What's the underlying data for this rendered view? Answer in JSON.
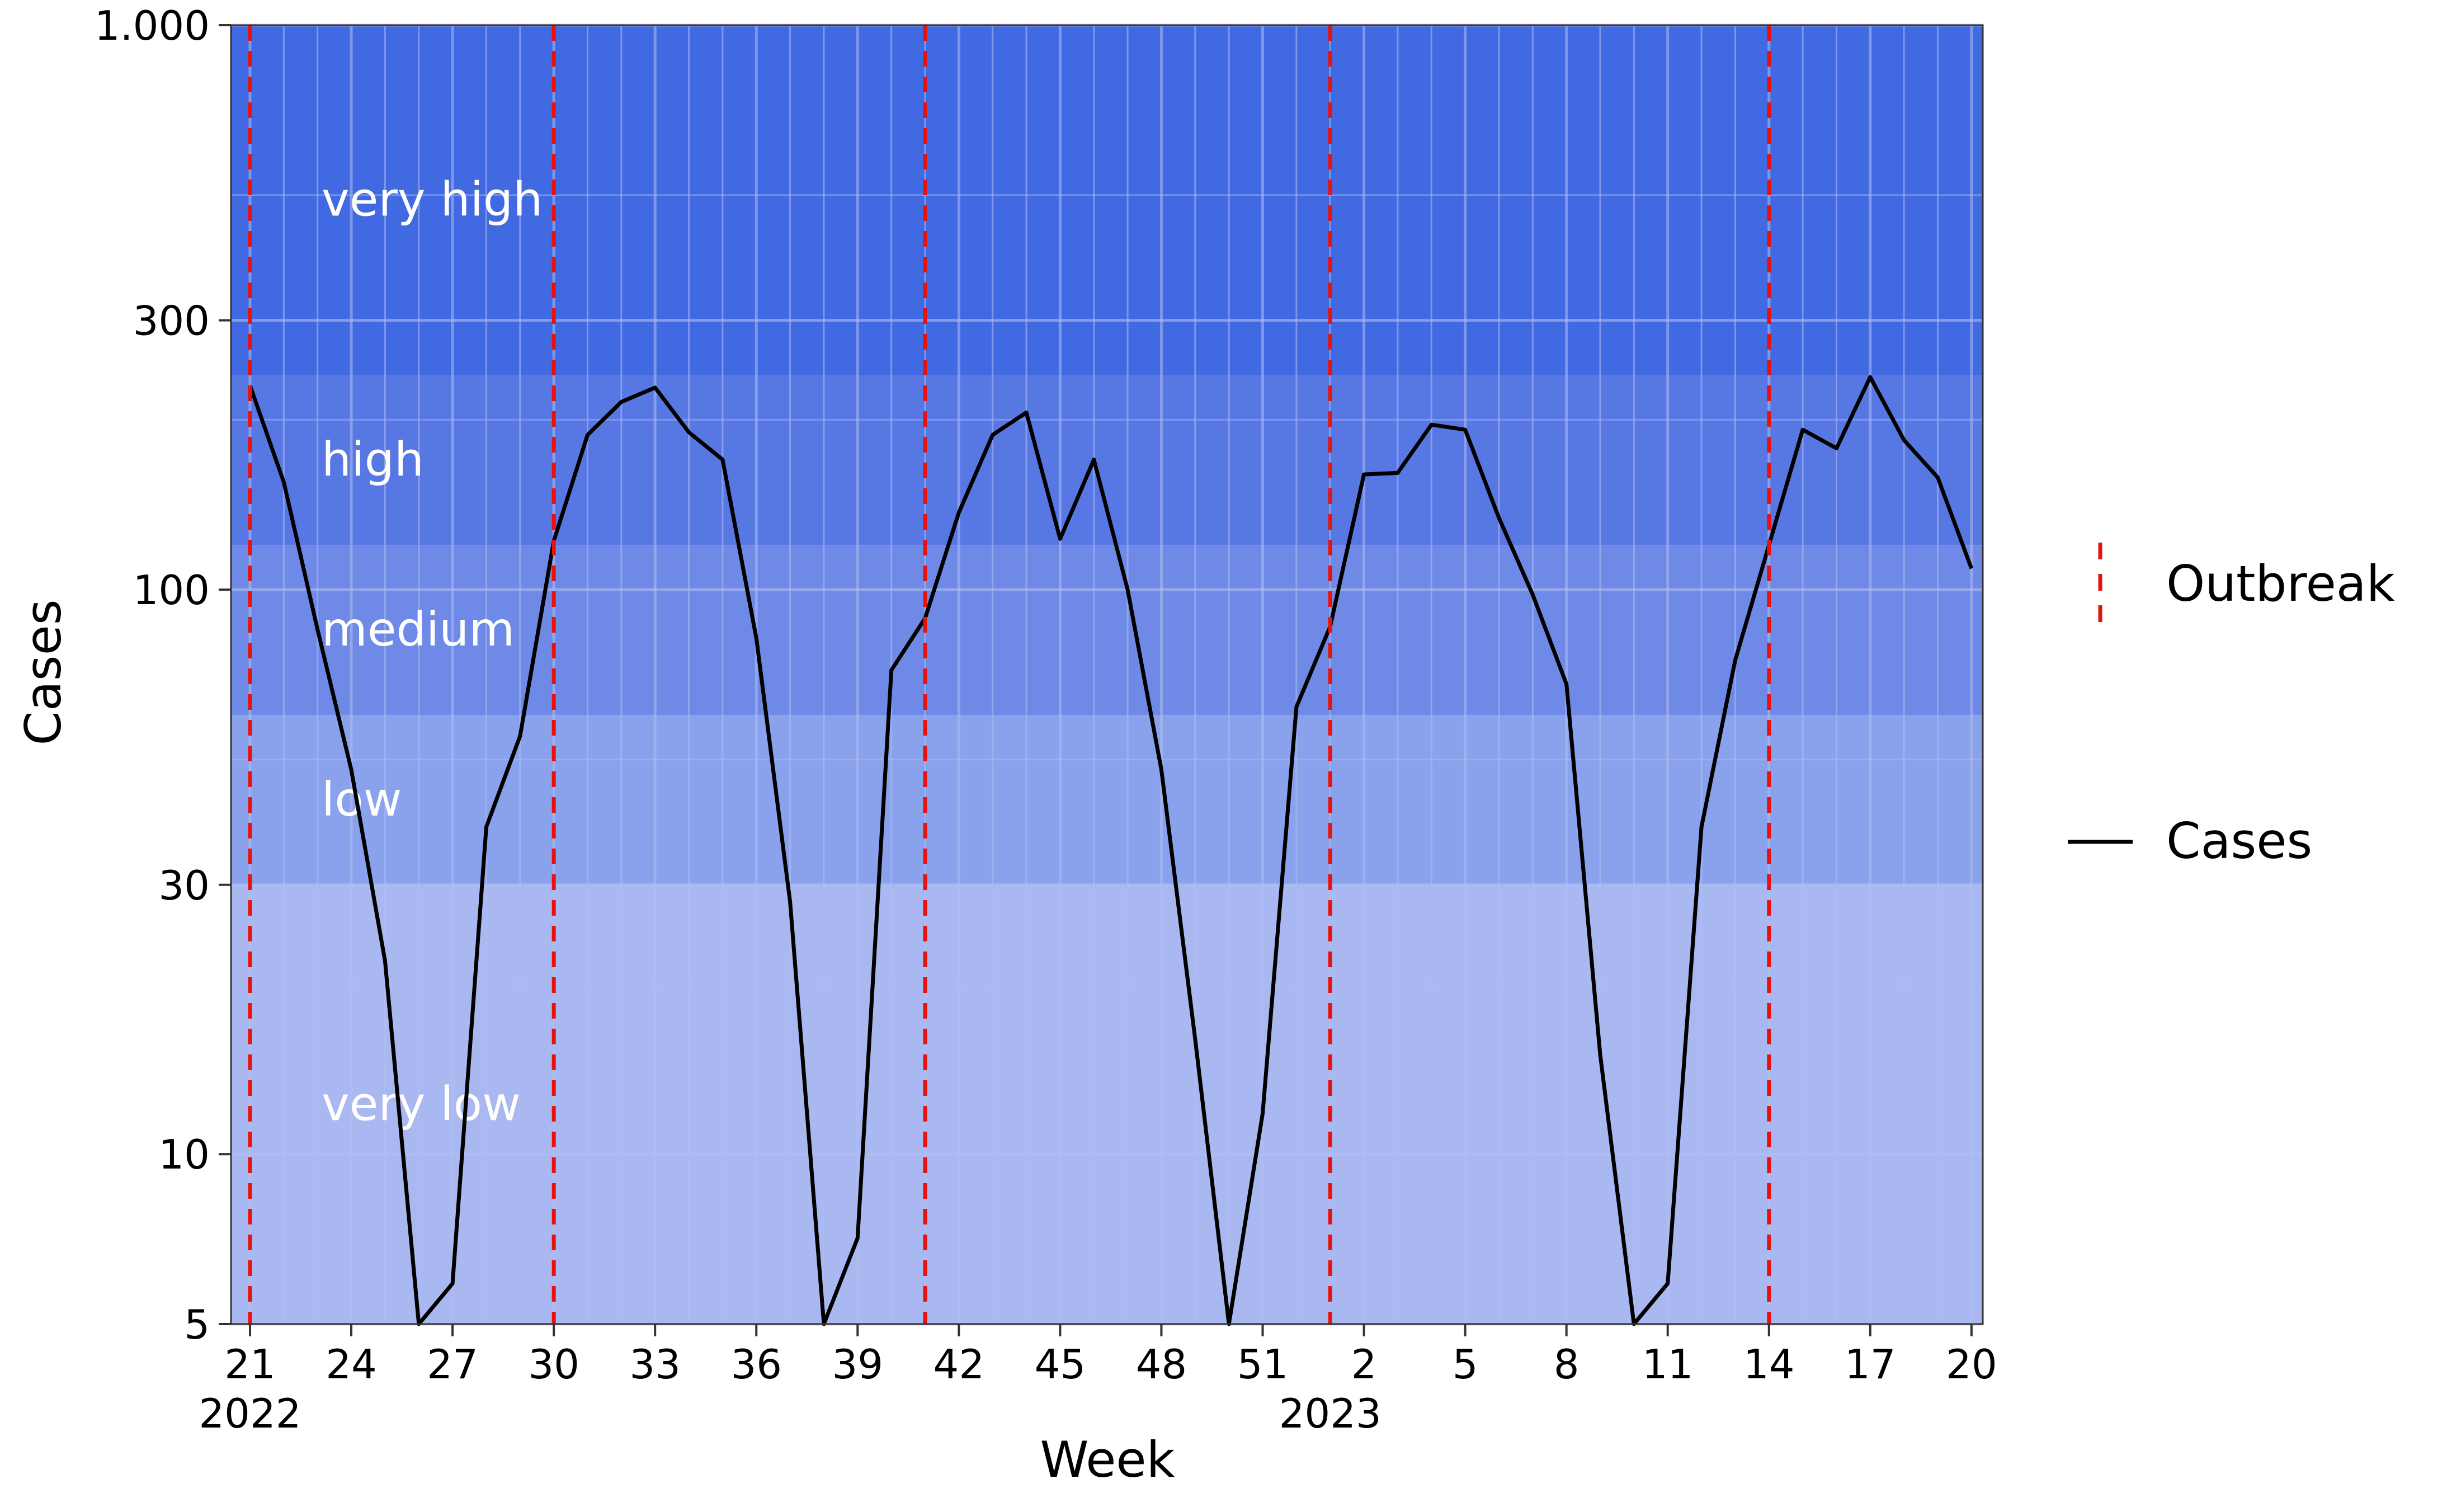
{
  "chart_data": {
    "type": "line",
    "xlabel": "Week",
    "ylabel": "Cases",
    "y_scale": "log",
    "ylim": [
      5,
      1000
    ],
    "y_ticks": [
      {
        "value": 5,
        "label": "5"
      },
      {
        "value": 10,
        "label": "10"
      },
      {
        "value": 30,
        "label": "30"
      },
      {
        "value": 100,
        "label": "100"
      },
      {
        "value": 300,
        "label": "300"
      },
      {
        "value": 1000,
        "label": "1.000"
      }
    ],
    "x_ticks": [
      "21",
      "24",
      "27",
      "30",
      "33",
      "36",
      "39",
      "42",
      "45",
      "48",
      "51",
      "2",
      "5",
      "8",
      "11",
      "14",
      "17",
      "20"
    ],
    "year_labels": [
      {
        "week": "2022-W21",
        "label": "2022"
      },
      {
        "week": "2023-W01",
        "label": "2023"
      }
    ],
    "weeks": [
      "2022-W21",
      "2022-W22",
      "2022-W23",
      "2022-W24",
      "2022-W25",
      "2022-W26",
      "2022-W27",
      "2022-W28",
      "2022-W29",
      "2022-W30",
      "2022-W31",
      "2022-W32",
      "2022-W33",
      "2022-W34",
      "2022-W35",
      "2022-W36",
      "2022-W37",
      "2022-W38",
      "2022-W39",
      "2022-W40",
      "2022-W41",
      "2022-W42",
      "2022-W43",
      "2022-W44",
      "2022-W45",
      "2022-W46",
      "2022-W47",
      "2022-W48",
      "2022-W49",
      "2022-W50",
      "2022-W51",
      "2022-W52",
      "2023-W01",
      "2023-W02",
      "2023-W03",
      "2023-W04",
      "2023-W05",
      "2023-W06",
      "2023-W07",
      "2023-W08",
      "2023-W09",
      "2023-W10",
      "2023-W11",
      "2023-W12",
      "2023-W13",
      "2023-W14",
      "2023-W15",
      "2023-W16",
      "2023-W17",
      "2023-W18",
      "2023-W19",
      "2023-W20"
    ],
    "series": [
      {
        "name": "Cases",
        "color": "#000000",
        "values": [
          230,
          155,
          85,
          48,
          22,
          5,
          5.9,
          38,
          55,
          122,
          188,
          215,
          228,
          190,
          170,
          82,
          28,
          5,
          7.1,
          72,
          89,
          137,
          188,
          206,
          123,
          170,
          100,
          48,
          16,
          5,
          11.8,
          62,
          86,
          160,
          161,
          196,
          192,
          134,
          98,
          68,
          15,
          5,
          5.9,
          38,
          75,
          120,
          192,
          178,
          238,
          184,
          158,
          109
        ]
      }
    ],
    "outbreaks": {
      "name": "Outbreak",
      "color": "#e8120c",
      "weeks": [
        "2022-W21",
        "2022-W30",
        "2022-W41",
        "2022-W53",
        "2023-W14"
      ]
    },
    "bands": [
      {
        "label": "very low",
        "from": 5,
        "to": 30,
        "color": "#aab8f1"
      },
      {
        "label": "low",
        "from": 30,
        "to": 60,
        "color": "#8aa1ec"
      },
      {
        "label": "medium",
        "from": 60,
        "to": 120,
        "color": "#6f8ae6"
      },
      {
        "label": "high",
        "from": 120,
        "to": 240,
        "color": "#5777e3"
      },
      {
        "label": "very high",
        "from": 240,
        "to": 1000,
        "color": "#4169e1"
      }
    ],
    "legend": {
      "position": "right",
      "items": [
        {
          "label": "Outbreak",
          "style": "dashed",
          "color": "#e8120c"
        },
        {
          "label": "Cases",
          "style": "solid",
          "color": "#000000"
        }
      ]
    },
    "grid": true
  }
}
